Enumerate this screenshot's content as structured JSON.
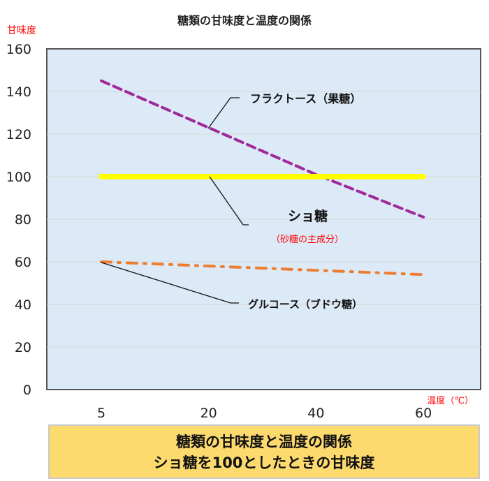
{
  "chart_data": {
    "type": "line",
    "title": "糖類の甘味度と温度の関係",
    "ylabel": "甘味度",
    "xlabel": "温度（℃）",
    "categories": [
      "5",
      "20",
      "40",
      "60"
    ],
    "ylim": [
      0,
      160
    ],
    "yticks": [
      0,
      20,
      40,
      60,
      80,
      100,
      120,
      140,
      160
    ],
    "grid": true,
    "background_color": "#dce9f6",
    "series": [
      {
        "name": "フラクトース（果糖）",
        "values": [
          145,
          123,
          101,
          81
        ],
        "color": "#a0299a",
        "style": "dashed"
      },
      {
        "name": "ショ糖",
        "sub": "（砂糖の主成分）",
        "values": [
          100,
          100,
          100,
          100
        ],
        "color": "#ffff00",
        "style": "solid"
      },
      {
        "name": "グルコース（ブドウ糖）",
        "values": [
          60,
          58,
          56,
          54
        ],
        "color": "#ed7d31",
        "style": "dashdot"
      }
    ]
  },
  "caption": {
    "line1": "糖類の甘味度と温度の関係",
    "line2": "ショ糖を100としたときの甘味度"
  }
}
